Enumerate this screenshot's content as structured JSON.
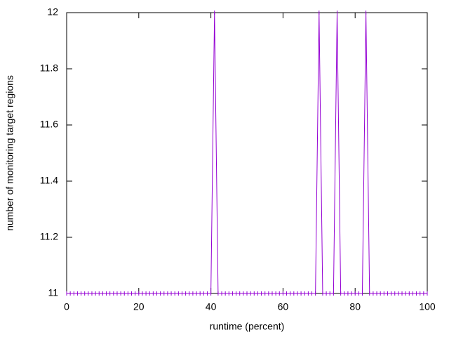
{
  "chart_data": {
    "type": "line",
    "xlabel": "runtime (percent)",
    "ylabel": "number of monitoring target regions",
    "x": [
      0,
      1,
      2,
      3,
      4,
      5,
      6,
      7,
      8,
      9,
      10,
      11,
      12,
      13,
      14,
      15,
      16,
      17,
      18,
      19,
      20,
      21,
      22,
      23,
      24,
      25,
      26,
      27,
      28,
      29,
      30,
      31,
      32,
      33,
      34,
      35,
      36,
      37,
      38,
      39,
      40,
      41,
      42,
      43,
      44,
      45,
      46,
      47,
      48,
      49,
      50,
      51,
      52,
      53,
      54,
      55,
      56,
      57,
      58,
      59,
      60,
      61,
      62,
      63,
      64,
      65,
      66,
      67,
      68,
      69,
      70,
      71,
      72,
      73,
      74,
      75,
      76,
      77,
      78,
      79,
      80,
      81,
      82,
      83,
      84,
      85,
      86,
      87,
      88,
      89,
      90,
      91,
      92,
      93,
      94,
      95,
      96,
      97,
      98,
      99,
      100
    ],
    "series": [
      {
        "color": "#9400d3",
        "values": [
          11,
          11,
          11,
          11,
          11,
          11,
          11,
          11,
          11,
          11,
          11,
          11,
          11,
          11,
          11,
          11,
          11,
          11,
          11,
          11,
          11,
          11,
          11,
          11,
          11,
          11,
          11,
          11,
          11,
          11,
          11,
          11,
          11,
          11,
          11,
          11,
          11,
          11,
          11,
          11,
          11,
          12,
          11,
          11,
          11,
          11,
          11,
          11,
          11,
          11,
          11,
          11,
          11,
          11,
          11,
          11,
          11,
          11,
          11,
          11,
          11,
          11,
          11,
          11,
          11,
          11,
          11,
          11,
          11,
          11,
          12,
          11,
          11,
          11,
          11,
          12,
          11,
          11,
          11,
          11,
          11,
          11,
          11,
          12,
          11,
          11,
          11,
          11,
          11,
          11,
          11,
          11,
          11,
          11,
          11,
          11,
          11,
          11,
          11,
          11,
          11
        ]
      }
    ],
    "xlim": [
      0,
      100
    ],
    "xticks": [
      0,
      20,
      40,
      60,
      80,
      100
    ],
    "ylim": [
      11,
      12
    ],
    "yticks": [
      11,
      11.2,
      11.4,
      11.6,
      11.8,
      12
    ]
  }
}
